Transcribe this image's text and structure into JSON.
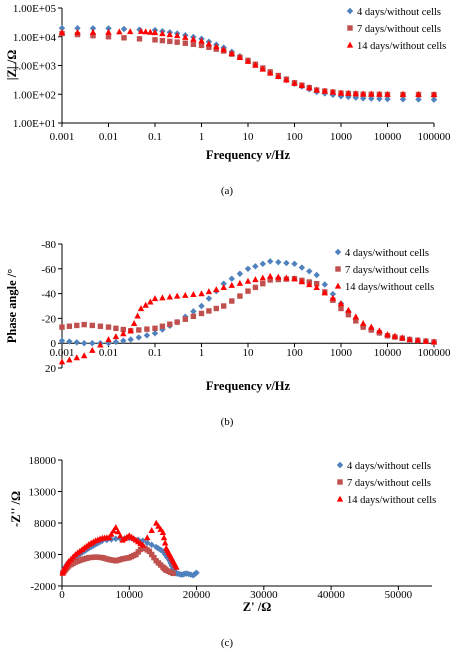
{
  "colors": {
    "series4": "#4F81BD",
    "series7": "#C0504D",
    "series14": "#FF0000",
    "axis": "#000000"
  },
  "chart_data": [
    {
      "type": "scatter",
      "panel_label": "(a)",
      "xlabel_main": "Frequency ",
      "xlabel_sym": "ν",
      "xlabel_unit": "/Hz",
      "ylabel": "|Z| /Ω",
      "x_scale": "log",
      "y_scale": "log",
      "xlim": [
        0.001,
        100000
      ],
      "ylim": [
        10,
        100000
      ],
      "x_ticks": [
        "0.001",
        "0.01",
        "0.1",
        "1",
        "10",
        "100",
        "1000",
        "10000",
        "100000"
      ],
      "y_ticks": [
        "1.00E+01",
        "1.00E+02",
        "1.00E+03",
        "1.00E+04",
        "1.00E+05"
      ],
      "legend_position": "right",
      "series": [
        {
          "name": "4 days/without cells",
          "marker": "diamond",
          "points": [
            [
              0.001,
              20000
            ],
            [
              0.01,
              19500
            ],
            [
              0.1,
              17000
            ],
            [
              0.3,
              13000
            ],
            [
              1,
              8500
            ],
            [
              3,
              4200
            ],
            [
              10,
              1500
            ],
            [
              30,
              560
            ],
            [
              100,
              230
            ],
            [
              300,
              120
            ],
            [
              1000,
              85
            ],
            [
              3000,
              72
            ],
            [
              10000,
              68
            ],
            [
              100000,
              65
            ]
          ]
        },
        {
          "name": "7 days/without cells",
          "marker": "square",
          "points": [
            [
              0.001,
              13000
            ],
            [
              0.01,
              10000
            ],
            [
              0.1,
              7800
            ],
            [
              0.3,
              6500
            ],
            [
              1,
              5000
            ],
            [
              3,
              3200
            ],
            [
              10,
              1500
            ],
            [
              30,
              600
            ],
            [
              100,
              250
            ],
            [
              300,
              140
            ],
            [
              1000,
              110
            ],
            [
              3000,
              100
            ],
            [
              10000,
              98
            ],
            [
              100000,
              97
            ]
          ]
        },
        {
          "name": "14 days/without cells",
          "marker": "triangle",
          "points": [
            [
              0.001,
              14000
            ],
            [
              0.01,
              14500
            ],
            [
              0.05,
              15500
            ],
            [
              0.1,
              14000
            ],
            [
              0.3,
              11000
            ],
            [
              1,
              7200
            ],
            [
              3,
              3600
            ],
            [
              10,
              1400
            ],
            [
              30,
              550
            ],
            [
              100,
              240
            ],
            [
              300,
              140
            ],
            [
              1000,
              110
            ],
            [
              3000,
              103
            ],
            [
              10000,
              100
            ],
            [
              100000,
              98
            ]
          ]
        }
      ]
    },
    {
      "type": "scatter",
      "panel_label": "(b)",
      "xlabel_main": "Frequency ",
      "xlabel_sym": "ν",
      "xlabel_unit": "/Hz",
      "ylabel": "Phase angle /°",
      "x_scale": "log",
      "y_scale": "linear",
      "y_inverted": true,
      "xlim": [
        0.001,
        100000
      ],
      "ylim": [
        -80,
        20
      ],
      "x_ticks": [
        "0.001",
        "0.01",
        "0.1",
        "1",
        "10",
        "100",
        "1000",
        "10000",
        "100000"
      ],
      "y_ticks": [
        "-80",
        "-60",
        "-40",
        "-20",
        "0",
        "20"
      ],
      "legend_position": "right",
      "series": [
        {
          "name": "4 days/without cells",
          "marker": "diamond",
          "points": [
            [
              0.001,
              -2
            ],
            [
              0.003,
              0
            ],
            [
              0.01,
              0
            ],
            [
              0.03,
              -3
            ],
            [
              0.1,
              -8
            ],
            [
              0.3,
              -17
            ],
            [
              1,
              -30
            ],
            [
              3,
              -48
            ],
            [
              10,
              -60
            ],
            [
              30,
              -66
            ],
            [
              100,
              -64
            ],
            [
              300,
              -55
            ],
            [
              1000,
              -32
            ],
            [
              3000,
              -13
            ],
            [
              10000,
              -6
            ],
            [
              30000,
              -3
            ],
            [
              100000,
              -1
            ]
          ]
        },
        {
          "name": "7 days/without cells",
          "marker": "square",
          "points": [
            [
              0.001,
              -13
            ],
            [
              0.003,
              -15
            ],
            [
              0.01,
              -13
            ],
            [
              0.03,
              -10
            ],
            [
              0.1,
              -12
            ],
            [
              0.3,
              -17
            ],
            [
              1,
              -24
            ],
            [
              3,
              -30
            ],
            [
              10,
              -42
            ],
            [
              30,
              -51
            ],
            [
              100,
              -52
            ],
            [
              300,
              -48
            ],
            [
              1000,
              -28
            ],
            [
              3000,
              -13
            ],
            [
              10000,
              -6
            ],
            [
              30000,
              -3
            ],
            [
              100000,
              -1
            ]
          ]
        },
        {
          "name": "14 days/without cells",
          "marker": "triangle",
          "points": [
            [
              0.001,
              15
            ],
            [
              0.003,
              10
            ],
            [
              0.01,
              -3
            ],
            [
              0.03,
              -10
            ],
            [
              0.05,
              -28
            ],
            [
              0.1,
              -36
            ],
            [
              0.3,
              -38
            ],
            [
              1,
              -40
            ],
            [
              3,
              -45
            ],
            [
              10,
              -50
            ],
            [
              30,
              -54
            ],
            [
              100,
              -52
            ],
            [
              300,
              -45
            ],
            [
              1000,
              -32
            ],
            [
              3000,
              -16
            ],
            [
              10000,
              -7
            ],
            [
              30000,
              -3
            ],
            [
              100000,
              -1
            ]
          ]
        }
      ]
    },
    {
      "type": "scatter",
      "panel_label": "(c)",
      "xlabel": "Z' /Ω",
      "ylabel": "-Z'' /Ω",
      "x_scale": "linear",
      "y_scale": "linear",
      "xlim": [
        0,
        55000
      ],
      "ylim": [
        -2000,
        18000
      ],
      "x_ticks": [
        "0",
        "10000",
        "20000",
        "30000",
        "40000",
        "50000"
      ],
      "y_ticks": [
        "-2000",
        "3000",
        "8000",
        "13000",
        "18000"
      ],
      "legend_position": "top-right",
      "series": [
        {
          "name": "4 days/without cells",
          "marker": "diamond",
          "points": [
            [
              100,
              60
            ],
            [
              500,
              1000
            ],
            [
              1000,
              1800
            ],
            [
              2000,
              2600
            ],
            [
              3000,
              3300
            ],
            [
              4000,
              4000
            ],
            [
              5000,
              4600
            ],
            [
              6000,
              5200
            ],
            [
              8000,
              5500
            ],
            [
              10000,
              5600
            ],
            [
              12000,
              5200
            ],
            [
              14000,
              4200
            ],
            [
              15000,
              3500
            ],
            [
              16000,
              2000
            ],
            [
              16500,
              800
            ],
            [
              17000,
              0
            ],
            [
              17800,
              -200
            ],
            [
              18500,
              0
            ],
            [
              19500,
              -300
            ],
            [
              20000,
              100
            ]
          ]
        },
        {
          "name": "7 days/without cells",
          "marker": "square",
          "points": [
            [
              100,
              50
            ],
            [
              500,
              600
            ],
            [
              1000,
              1200
            ],
            [
              2000,
              1800
            ],
            [
              3000,
              2200
            ],
            [
              4000,
              2500
            ],
            [
              5000,
              2600
            ],
            [
              6000,
              2500
            ],
            [
              7000,
              2200
            ],
            [
              8000,
              2000
            ],
            [
              9000,
              2300
            ],
            [
              10000,
              2500
            ],
            [
              11000,
              3000
            ],
            [
              12000,
              4200
            ],
            [
              13000,
              3500
            ],
            [
              14000,
              2000
            ],
            [
              15000,
              1000
            ],
            [
              15500,
              500
            ],
            [
              16500,
              0
            ]
          ]
        },
        {
          "name": "14 days/without cells",
          "marker": "triangle",
          "points": [
            [
              100,
              80
            ],
            [
              500,
              1100
            ],
            [
              1000,
              1900
            ],
            [
              2000,
              3000
            ],
            [
              3000,
              3800
            ],
            [
              4000,
              4600
            ],
            [
              5000,
              5200
            ],
            [
              6000,
              5600
            ],
            [
              7000,
              5700
            ],
            [
              8000,
              7300
            ],
            [
              9000,
              5300
            ],
            [
              10000,
              6000
            ],
            [
              11000,
              5300
            ],
            [
              12000,
              4500
            ],
            [
              14000,
              8000
            ],
            [
              15000,
              6500
            ],
            [
              15500,
              4000
            ],
            [
              16000,
              3000
            ],
            [
              16500,
              2000
            ],
            [
              17000,
              1000
            ]
          ]
        }
      ]
    }
  ]
}
